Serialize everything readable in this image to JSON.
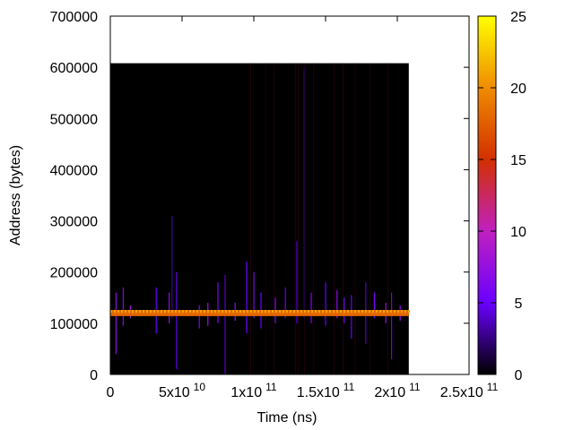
{
  "chart_data": {
    "type": "heatmap",
    "xlabel": "Time (ns)",
    "ylabel": "Address (bytes)",
    "xlim": [
      0,
      250000000000
    ],
    "ylim": [
      0,
      700000
    ],
    "x_ticks": [
      {
        "value": 0,
        "mant": "0",
        "exp": ""
      },
      {
        "value": 50000000000,
        "mant": "5x10",
        "exp": "10"
      },
      {
        "value": 100000000000,
        "mant": "1x10",
        "exp": "11"
      },
      {
        "value": 150000000000,
        "mant": "1.5x10",
        "exp": "11"
      },
      {
        "value": 200000000000,
        "mant": "2x10",
        "exp": "11"
      },
      {
        "value": 250000000000,
        "mant": "2.5x10",
        "exp": "11"
      }
    ],
    "y_ticks": [
      0,
      100000,
      200000,
      300000,
      400000,
      500000,
      600000,
      700000
    ],
    "y_tick_labels": [
      "0",
      "100000",
      "200000",
      "300000",
      "400000",
      "500000",
      "600000",
      "700000"
    ],
    "data_extent": {
      "x": [
        0,
        208000000000
      ],
      "y": [
        0,
        608000
      ]
    },
    "background_value": 0,
    "colorbar": {
      "range": [
        0,
        25
      ],
      "ticks": [
        0,
        5,
        10,
        15,
        20,
        25
      ],
      "tick_labels": [
        "0",
        "5",
        "10",
        "15",
        "20",
        "25"
      ],
      "palette": [
        "#000000",
        "#6a00ff",
        "#c020c0",
        "#d23000",
        "#f08c00",
        "#ffff00"
      ]
    },
    "main_band": {
      "y_center": 120000,
      "y_half_width": 6000,
      "x_range": [
        0,
        208000000000
      ],
      "value": 18
    },
    "spikes": [
      {
        "x": 4000000000,
        "y0": 40000,
        "y1": 160000,
        "v": 7
      },
      {
        "x": 9000000000,
        "y0": 95000,
        "y1": 170000,
        "v": 6
      },
      {
        "x": 14000000000,
        "y0": 110000,
        "y1": 135000,
        "v": 8
      },
      {
        "x": 32000000000,
        "y0": 80000,
        "y1": 170000,
        "v": 5
      },
      {
        "x": 41000000000,
        "y0": 100000,
        "y1": 160000,
        "v": 7
      },
      {
        "x": 43000000000,
        "y0": 110000,
        "y1": 310000,
        "v": 3
      },
      {
        "x": 46000000000,
        "y0": 10000,
        "y1": 200000,
        "v": 4
      },
      {
        "x": 62000000000,
        "y0": 90000,
        "y1": 135000,
        "v": 6
      },
      {
        "x": 68000000000,
        "y0": 95000,
        "y1": 140000,
        "v": 8
      },
      {
        "x": 75000000000,
        "y0": 100000,
        "y1": 180000,
        "v": 6
      },
      {
        "x": 80000000000,
        "y0": 0,
        "y1": 195000,
        "v": 4
      },
      {
        "x": 87000000000,
        "y0": 105000,
        "y1": 140000,
        "v": 7
      },
      {
        "x": 95000000000,
        "y0": 80000,
        "y1": 220000,
        "v": 5
      },
      {
        "x": 100000000000,
        "y0": 110000,
        "y1": 200000,
        "v": 6
      },
      {
        "x": 105000000000,
        "y0": 90000,
        "y1": 160000,
        "v": 5
      },
      {
        "x": 115000000000,
        "y0": 100000,
        "y1": 150000,
        "v": 6
      },
      {
        "x": 122000000000,
        "y0": 110000,
        "y1": 170000,
        "v": 5
      },
      {
        "x": 130000000000,
        "y0": 100000,
        "y1": 260000,
        "v": 4
      },
      {
        "x": 135000000000,
        "y0": 110000,
        "y1": 600000,
        "v": 2
      },
      {
        "x": 140000000000,
        "y0": 100000,
        "y1": 160000,
        "v": 6
      },
      {
        "x": 150000000000,
        "y0": 95000,
        "y1": 180000,
        "v": 5
      },
      {
        "x": 158000000000,
        "y0": 110000,
        "y1": 165000,
        "v": 7
      },
      {
        "x": 163000000000,
        "y0": 100000,
        "y1": 150000,
        "v": 6
      },
      {
        "x": 168000000000,
        "y0": 70000,
        "y1": 155000,
        "v": 5
      },
      {
        "x": 178000000000,
        "y0": 60000,
        "y1": 180000,
        "v": 4
      },
      {
        "x": 184000000000,
        "y0": 110000,
        "y1": 160000,
        "v": 6
      },
      {
        "x": 192000000000,
        "y0": 100000,
        "y1": 140000,
        "v": 8
      },
      {
        "x": 196000000000,
        "y0": 30000,
        "y1": 160000,
        "v": 5
      },
      {
        "x": 202000000000,
        "y0": 105000,
        "y1": 135000,
        "v": 7
      }
    ]
  }
}
